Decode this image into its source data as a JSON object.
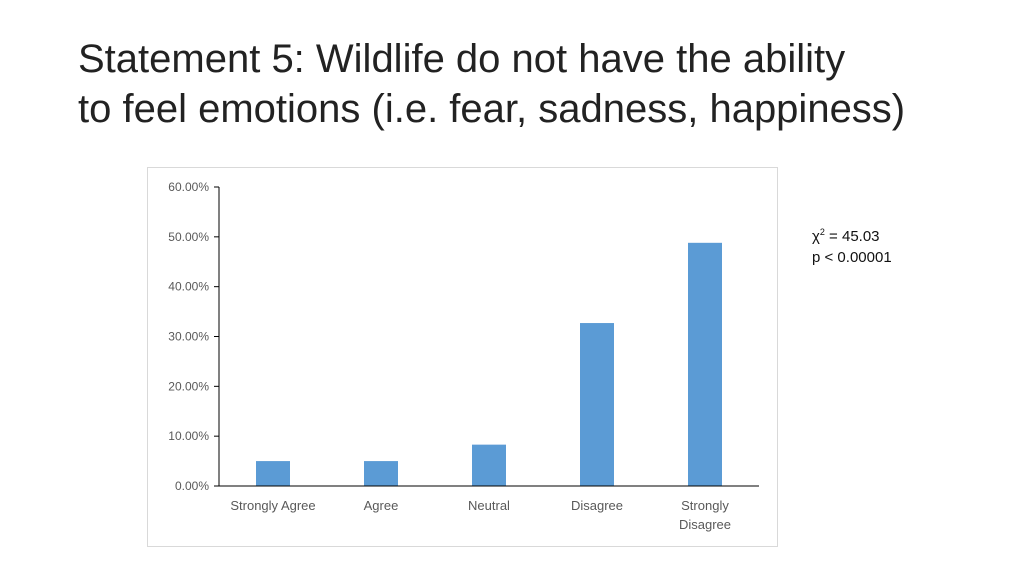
{
  "slide": {
    "title_line1": "Statement 5: Wildlife do not have the ability",
    "title_line2": "to feel emotions (i.e. fear, sadness, happiness)"
  },
  "stats": {
    "chi_symbol": "χ",
    "chi_exponent": "2",
    "chi_value": " = 45.03",
    "p_value": "p < 0.00001"
  },
  "colors": {
    "bar": "#5B9BD5",
    "axis": "#000000",
    "tick_text": "#595959"
  },
  "chart_data": {
    "type": "bar",
    "categories": [
      "Strongly Agree",
      "Agree",
      "Neutral",
      "Disagree",
      "Strongly Disagree"
    ],
    "category_lines": [
      [
        "Strongly Agree"
      ],
      [
        "Agree"
      ],
      [
        "Neutral"
      ],
      [
        "Disagree"
      ],
      [
        "Strongly",
        "Disagree"
      ]
    ],
    "values": [
      5.0,
      5.0,
      8.3,
      32.7,
      48.8
    ],
    "y_ticks": [
      "0.00%",
      "10.00%",
      "20.00%",
      "30.00%",
      "40.00%",
      "50.00%",
      "60.00%"
    ],
    "ylim": [
      0,
      60
    ],
    "grid": false,
    "title": "",
    "xlabel": "",
    "ylabel": ""
  }
}
